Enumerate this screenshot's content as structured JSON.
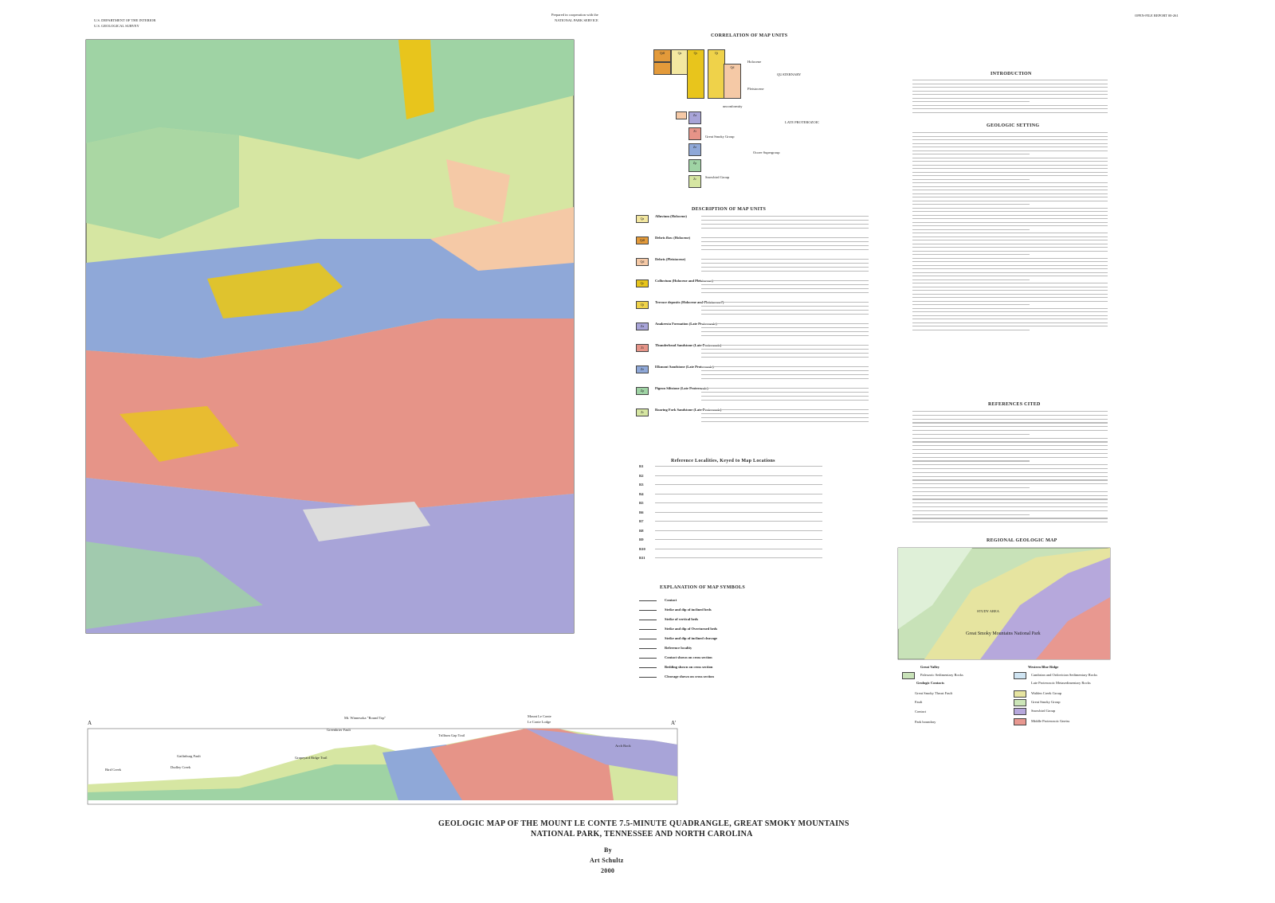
{
  "header": {
    "agency": "U.S. DEPARTMENT OF THE INTERIOR",
    "survey": "U.S. GEOLOGICAL SURVEY",
    "cooperation": "Prepared in cooperation with the",
    "partner": "NATIONAL PARK SERVICE",
    "report": "OPEN-FILE REPORT 00-261"
  },
  "correlation": {
    "title": "CORRELATION OF MAP UNITS",
    "holocene": "Holocene",
    "quaternary": "QUATERNARY",
    "pleistocene": "Pleistocene",
    "unconformity": "unconformity",
    "late_proterozoic": "LATE PROTEROZOIC",
    "great_smoky_group": "Great Smoky Group",
    "ocoee": "Ocoee Supergroup",
    "snowbird": "Snowbird Group"
  },
  "description": {
    "title": "DESCRIPTION OF MAP UNITS",
    "units": [
      {
        "symbol": "Qa",
        "name": "Alluvium (Holocene)",
        "color": "#f3e7a0"
      },
      {
        "symbol": "Qdf",
        "name": "Debris flow (Holocene)",
        "color": "#e39a3a"
      },
      {
        "symbol": "Qd",
        "name": "Debris (Pleistocene)",
        "color": "#f5c9a6"
      },
      {
        "symbol": "Qc",
        "name": "Colluvium (Holocene and Pleistocene)",
        "color": "#e8c51c"
      },
      {
        "symbol": "Qt",
        "name": "Terrace deposits (Holocene and Pleistocene?)",
        "color": "#efd24a"
      },
      {
        "symbol": "Za",
        "name": "Anakeesta Formation (Late Proterozoic)",
        "color": "#a8a4d8"
      },
      {
        "symbol": "Zt",
        "name": "Thunderhead Sandstone (Late Proterozoic)",
        "color": "#e69488"
      },
      {
        "symbol": "Ze",
        "name": "Elkmont Sandstone (Late Proterozoic)",
        "color": "#8fa8d8"
      },
      {
        "symbol": "Zp",
        "name": "Pigeon Siltstone (Late Proterozoic)",
        "color": "#9fd3a4"
      },
      {
        "symbol": "Zr",
        "name": "Roaring Fork Sandstone (Late Proterozoic)",
        "color": "#d6e6a2"
      }
    ]
  },
  "localities": {
    "title": "Reference Localities, Keyed to Map Locations",
    "keys": [
      "R1",
      "R2",
      "R3",
      "R4",
      "R5",
      "R6",
      "R7",
      "R8",
      "R9",
      "R10",
      "R11"
    ]
  },
  "explanation": {
    "title": "EXPLANATION OF MAP SYMBOLS",
    "items": [
      "Contact",
      "Strike and dip of inclined beds",
      "Strike of vertical beds",
      "Strike and dip of Overturned beds",
      "Strike and dip of inclined cleavage",
      "Reference locality",
      "Contact shown on cross section",
      "Bedding shown on cross section",
      "Cleavage shown on cross section"
    ]
  },
  "right": {
    "introduction": "INTRODUCTION",
    "setting": "GEOLOGIC SETTING",
    "references": "REFERENCES CITED",
    "regional": "REGIONAL GEOLOGIC MAP",
    "study_area": "STUDY AREA",
    "park": "Great Smoky Mountains National Park"
  },
  "regional_legend": {
    "great_valley": "Great Valley",
    "western_blue_ridge": "Western Blue Ridge",
    "paleozoic": "Paleozoic Sedimentary Rocks",
    "cambrian": "Cambrian and Ordovician Sedimentary Rocks",
    "contacts": "Geologic Contacts",
    "late_proterozoic": "Late Proterozoic Metasedimentary Rocks",
    "thrust": "Great Smoky Thrust Fault",
    "walden": "Walden Creek Group",
    "fault": "Fault",
    "great_smoky": "Great Smoky Group",
    "contact": "Contact",
    "snowbird": "Snowbird Group",
    "boundary": "Park boundary",
    "gneiss": "Middle Proterozoic Gneiss"
  },
  "section": {
    "start": "A",
    "end": "A'",
    "labels": [
      "Mt. Winnesoka \"Round Top\"",
      "Greenbrier Fault",
      "Gatlinburg Fault",
      "Grapeyard Ridge Trail",
      "Dudley Creek",
      "Bird Creek",
      "Trillium Gap Trail",
      "Mount Le Conte",
      "Le Conte Lodge",
      "Arch Rock"
    ]
  },
  "footer": {
    "title_1": "GEOLOGIC MAP OF THE MOUNT LE CONTE 7.5-MINUTE QUADRANGLE, GREAT SMOKY MOUNTAINS",
    "title_2": "NATIONAL PARK, TENNESSEE AND NORTH CAROLINA",
    "by": "By",
    "author": "Art Schultz",
    "year": "2000"
  }
}
